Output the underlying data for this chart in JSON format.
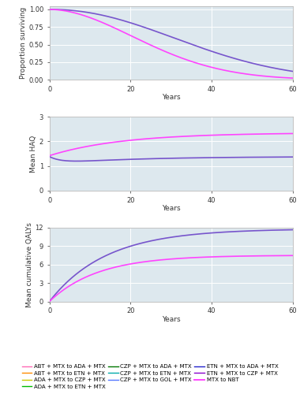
{
  "legend_entries": [
    {
      "label": "ABT + MTX to ADA + MTX",
      "color": "#ff69b4",
      "lw": 1.0
    },
    {
      "label": "ABT + MTX to ETN + MTX",
      "color": "#ff8c00",
      "lw": 1.0
    },
    {
      "label": "ADA + MTX to CZP + MTX",
      "color": "#c8c800",
      "lw": 1.0
    },
    {
      "label": "ADA + MTX to ETN + MTX",
      "color": "#00bb00",
      "lw": 1.0
    },
    {
      "label": "CZP + MTX to ADA + MTX",
      "color": "#007700",
      "lw": 1.0
    },
    {
      "label": "CZP + MTX to ETN + MTX",
      "color": "#00aaaa",
      "lw": 1.0
    },
    {
      "label": "CZP + MTX to GOL + MTX",
      "color": "#5577ff",
      "lw": 1.0
    },
    {
      "label": "ETN + MTX to ADA + MTX",
      "color": "#2222cc",
      "lw": 1.0
    },
    {
      "label": "ETN + MTX to CZP + MTX",
      "color": "#8800cc",
      "lw": 1.0
    },
    {
      "label": "MTX to NBT",
      "color": "#ff44ff",
      "lw": 1.4
    }
  ],
  "biologic_color": "#7755cc",
  "mtx_color": "#ff44ff",
  "subplot1": {
    "ylabel": "Proportion surviving",
    "xlabel": "Years",
    "ylim": [
      0.0,
      1.05
    ],
    "yticks": [
      0.0,
      0.25,
      0.5,
      0.75,
      1.0
    ],
    "xticks": [
      0,
      20,
      40,
      60
    ],
    "surv_bio_scale": 42,
    "surv_bio_shape": 2.1,
    "surv_mtx_scale": 30,
    "surv_mtx_shape": 1.9
  },
  "subplot2": {
    "ylabel": "Mean HAQ",
    "xlabel": "Years",
    "ylim": [
      0,
      3
    ],
    "yticks": [
      0,
      1,
      2,
      3
    ],
    "xticks": [
      0,
      20,
      40,
      60
    ],
    "bio_start": 1.38,
    "bio_dip": 1.08,
    "bio_dip_t": 3.0,
    "bio_end": 1.38,
    "mtx_start": 1.42,
    "mtx_end": 2.35
  },
  "subplot3": {
    "ylabel": "Mean cumulative QALYs",
    "xlabel": "Years",
    "ylim": [
      0,
      12
    ],
    "yticks": [
      0,
      3,
      6,
      9,
      12
    ],
    "xticks": [
      0,
      20,
      40,
      60
    ],
    "bio_end": 11.8,
    "mtx_end": 7.5,
    "bio_rate": 14,
    "mtx_rate": 12
  },
  "bg_color": "#dde8ee",
  "grid_color": "#ffffff",
  "fontsize": 6.5
}
